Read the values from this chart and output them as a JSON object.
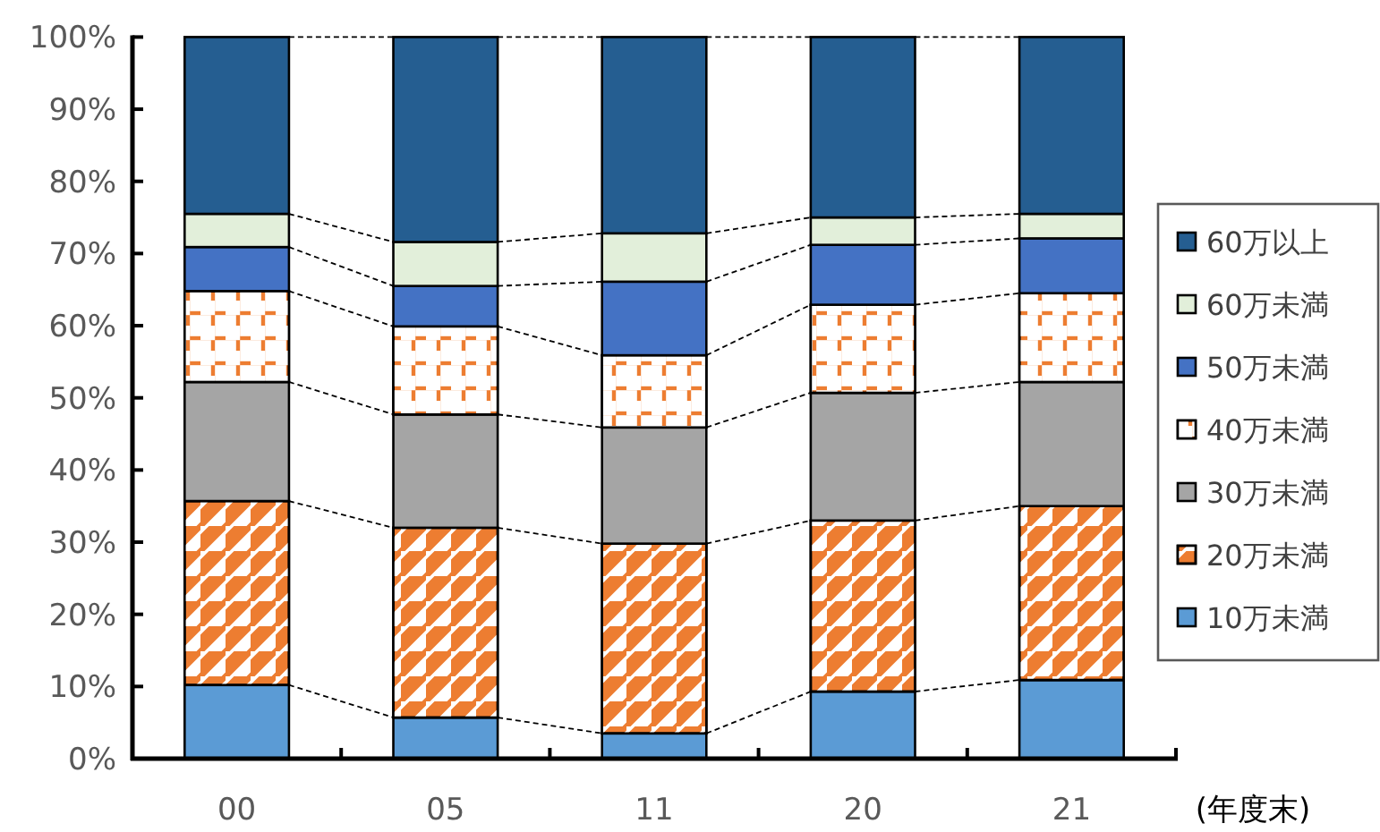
{
  "chart_data": {
    "type": "bar",
    "stacked": true,
    "categories": [
      "00",
      "05",
      "11",
      "20",
      "21"
    ],
    "xlabel": "(年度末)",
    "ylim": [
      0,
      100
    ],
    "yticks": [
      {
        "value": 0,
        "label": "0%"
      },
      {
        "value": 10,
        "label": "10%"
      },
      {
        "value": 20,
        "label": "20%"
      },
      {
        "value": 30,
        "label": "30%"
      },
      {
        "value": 40,
        "label": "40%"
      },
      {
        "value": 50,
        "label": "50%"
      },
      {
        "value": 60,
        "label": "60%"
      },
      {
        "value": 70,
        "label": "70%"
      },
      {
        "value": 80,
        "label": "80%"
      },
      {
        "value": 90,
        "label": "90%"
      },
      {
        "value": 100,
        "label": "100%"
      }
    ],
    "legend": "right",
    "grid": false,
    "series": [
      {
        "name": "10万未満",
        "color": "#5b9bd5",
        "values": [
          10.2,
          5.7,
          3.5,
          9.3,
          10.9
        ]
      },
      {
        "name": "20万未満",
        "color": "#ed7d31",
        "values": [
          25.5,
          26.3,
          26.3,
          23.7,
          24.1
        ]
      },
      {
        "name": "30万未満",
        "color": "#a5a5a5",
        "values": [
          16.5,
          15.7,
          16.1,
          17.7,
          17.2
        ]
      },
      {
        "name": "40万未満",
        "color": "#ed7d31",
        "values": [
          12.6,
          12.2,
          10.0,
          12.2,
          12.3
        ]
      },
      {
        "name": "50万未満",
        "color": "#4472c4",
        "values": [
          6.1,
          5.6,
          10.2,
          8.3,
          7.6
        ]
      },
      {
        "name": "60万未満",
        "color": "#e2efda",
        "values": [
          4.6,
          6.1,
          6.7,
          3.8,
          3.4
        ]
      },
      {
        "name": "60万以上",
        "color": "#255e91",
        "values": [
          24.5,
          28.4,
          27.2,
          25.0,
          24.5
        ]
      }
    ]
  }
}
